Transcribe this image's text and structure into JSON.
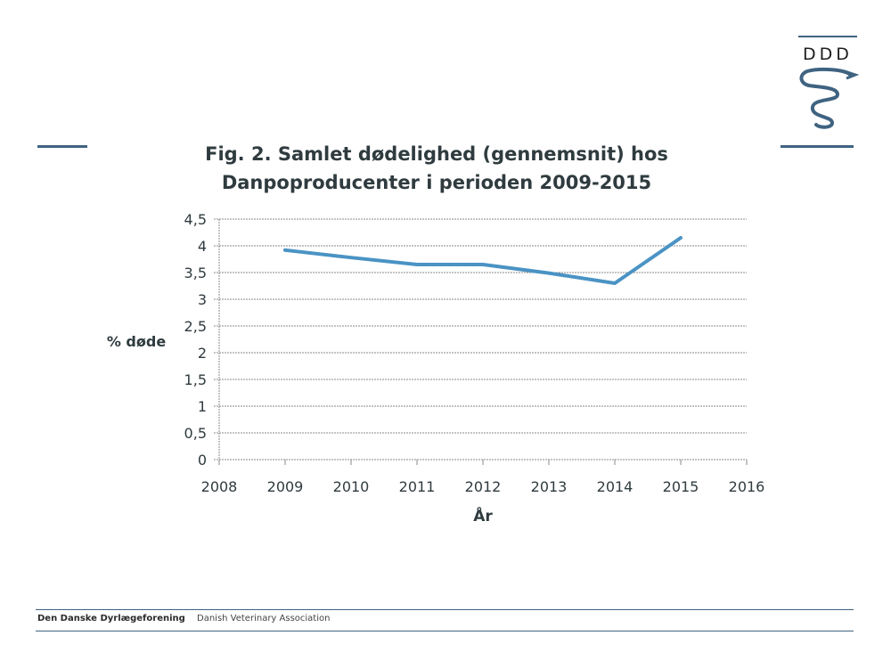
{
  "slide": {
    "logo_text": "DDD",
    "footer": {
      "org_name": "Den Danske Dyrlægeforening",
      "org_name_en": "Danish Veterinary Association"
    },
    "colors": {
      "brand": "#3f6381",
      "series": "#4a93c4",
      "grid": "#8a8a8a",
      "text": "#2f3b3f"
    }
  },
  "chart_data": {
    "type": "line",
    "title": "Fig. 2. Samlet dødelighed (gennemsnit) hos Danpoproducenter i perioden 2009-2015",
    "title_lines": [
      "Fig. 2. Samlet dødelighed (gennemsnit) hos",
      "Danpoproducenter i perioden 2009-2015"
    ],
    "xlabel": "År",
    "ylabel": "% døde",
    "xlim": [
      2008,
      2016
    ],
    "ylim": [
      0,
      4.5
    ],
    "x_ticks": [
      2008,
      2009,
      2010,
      2011,
      2012,
      2013,
      2014,
      2015,
      2016
    ],
    "y_ticks": [
      0,
      0.5,
      1,
      1.5,
      2,
      2.5,
      3,
      3.5,
      4,
      4.5
    ],
    "y_tick_labels": [
      "0",
      "0,5",
      "1",
      "1,5",
      "2",
      "2,5",
      "3",
      "3,5",
      "4",
      "4,5"
    ],
    "grid": true,
    "legend": "none",
    "series": [
      {
        "name": "Samlet dødelighed",
        "x": [
          2009,
          2010,
          2011,
          2012,
          2013,
          2014,
          2015
        ],
        "values": [
          3.92,
          3.78,
          3.65,
          3.65,
          3.49,
          3.3,
          4.15
        ]
      }
    ]
  }
}
